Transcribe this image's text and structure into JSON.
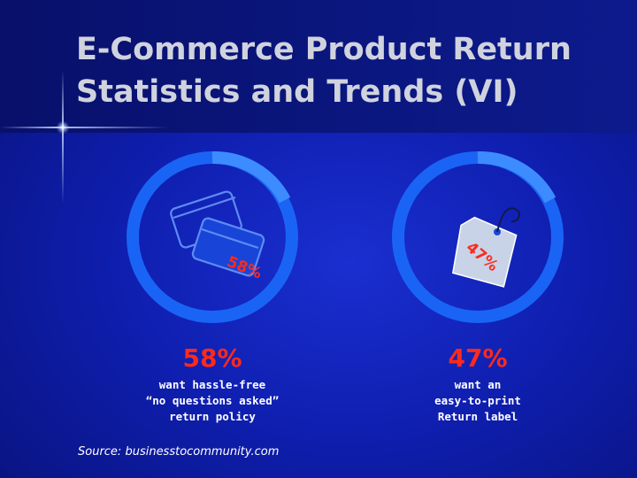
{
  "title": "E-Commerce Product Return Statistics and Trends (VI)",
  "stats": [
    {
      "value": "58%",
      "caption_lines": [
        "want hassle-free",
        "“no questions asked”",
        "return policy"
      ],
      "icon": "credit-cards-icon",
      "ring_percent": 58
    },
    {
      "value": "47%",
      "caption_lines": [
        "want an",
        "easy-to-print",
        "Return label"
      ],
      "icon": "price-tag-icon",
      "ring_percent": 47
    }
  ],
  "source": "Source: businesstocommunity.com",
  "colors": {
    "ring_base": "#1a64f5",
    "ring_highlight": "#3d8cff",
    "percent_text": "#ff2a1a",
    "title_text": "#d0d3de"
  }
}
